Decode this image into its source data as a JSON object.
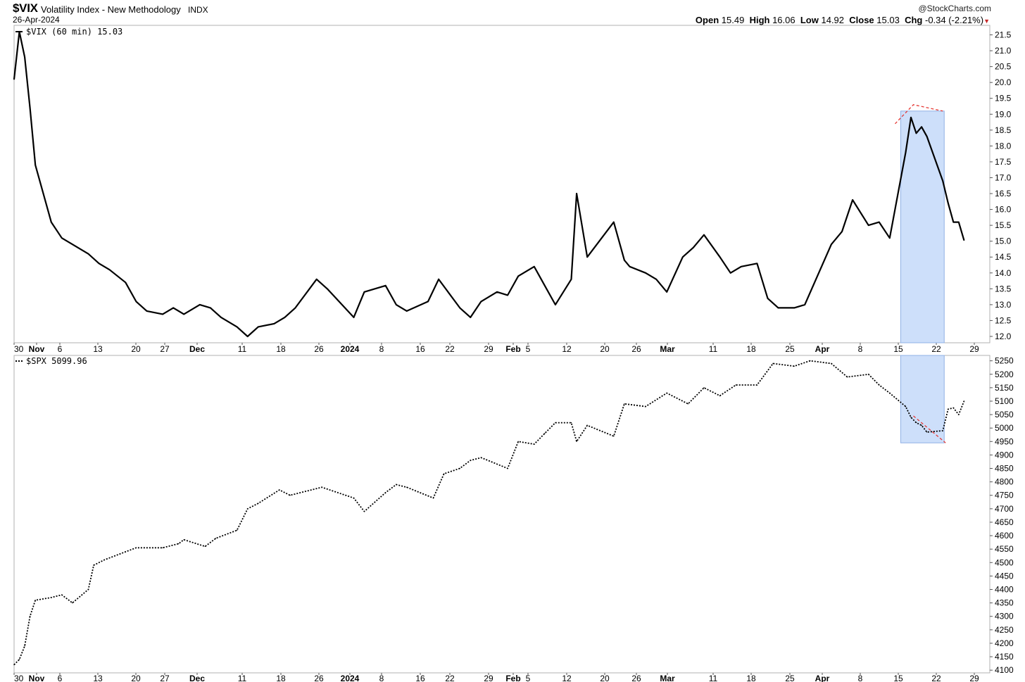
{
  "header": {
    "symbol": "$VIX",
    "description": "Volatility Index - New Methodology",
    "exchange": "INDX",
    "date": "26-Apr-2024",
    "credit": "@StockCharts.com",
    "open_label": "Open",
    "open": "15.49",
    "high_label": "High",
    "high": "16.06",
    "low_label": "Low",
    "low": "14.92",
    "close_label": "Close",
    "close": "15.03",
    "chg_label": "Chg",
    "chg": "-0.34 (-2.21%)"
  },
  "colors": {
    "highlight_fill": "#cddffa",
    "highlight_stroke": "#8fb0e6",
    "trend_line": "#e53935",
    "series_line": "#000000",
    "grid_frame": "#b0b0b0"
  },
  "chart_data": [
    {
      "type": "line",
      "legend": "$VIX (60 min) 15.03",
      "series": [
        {
          "name": "$VIX (60 min)",
          "style": "solid",
          "x": [
            "2023-10-30",
            "2023-10-31",
            "2023-11-01",
            "2023-11-02",
            "2023-11-03",
            "2023-11-06",
            "2023-11-08",
            "2023-11-10",
            "2023-11-13",
            "2023-11-15",
            "2023-11-17",
            "2023-11-20",
            "2023-11-22",
            "2023-11-24",
            "2023-11-27",
            "2023-11-29",
            "2023-12-01",
            "2023-12-04",
            "2023-12-06",
            "2023-12-08",
            "2023-12-11",
            "2023-12-13",
            "2023-12-15",
            "2023-12-18",
            "2023-12-20",
            "2023-12-22",
            "2023-12-26",
            "2023-12-28",
            "2024-01-02",
            "2024-01-04",
            "2024-01-08",
            "2024-01-10",
            "2024-01-12",
            "2024-01-16",
            "2024-01-18",
            "2024-01-22",
            "2024-01-24",
            "2024-01-26",
            "2024-01-29",
            "2024-01-31",
            "2024-02-02",
            "2024-02-05",
            "2024-02-07",
            "2024-02-09",
            "2024-02-12",
            "2024-02-13",
            "2024-02-15",
            "2024-02-20",
            "2024-02-22",
            "2024-02-23",
            "2024-02-26",
            "2024-02-28",
            "2024-03-01",
            "2024-03-04",
            "2024-03-06",
            "2024-03-08",
            "2024-03-11",
            "2024-03-13",
            "2024-03-15",
            "2024-03-18",
            "2024-03-20",
            "2024-03-22",
            "2024-03-25",
            "2024-03-27",
            "2024-04-01",
            "2024-04-03",
            "2024-04-05",
            "2024-04-08",
            "2024-04-10",
            "2024-04-12",
            "2024-04-15",
            "2024-04-16",
            "2024-04-17",
            "2024-04-18",
            "2024-04-19",
            "2024-04-22",
            "2024-04-23",
            "2024-04-24",
            "2024-04-25",
            "2024-04-26"
          ],
          "values": [
            20.1,
            21.6,
            20.8,
            19.2,
            17.4,
            15.6,
            15.1,
            14.9,
            14.6,
            14.3,
            14.1,
            13.7,
            13.1,
            12.8,
            12.7,
            12.9,
            12.7,
            13.0,
            12.9,
            12.6,
            12.3,
            12.0,
            12.3,
            12.4,
            12.6,
            12.9,
            13.8,
            13.5,
            12.6,
            13.4,
            13.6,
            13.0,
            12.8,
            13.1,
            13.8,
            12.9,
            12.6,
            13.1,
            13.4,
            13.3,
            13.9,
            14.2,
            13.6,
            13.0,
            13.8,
            16.5,
            14.5,
            15.6,
            14.4,
            14.2,
            14.0,
            13.8,
            13.4,
            14.5,
            14.8,
            15.2,
            14.5,
            14.0,
            14.2,
            14.3,
            13.2,
            12.9,
            12.9,
            13.0,
            14.9,
            15.3,
            16.3,
            15.5,
            15.6,
            15.1,
            17.8,
            18.9,
            18.4,
            18.6,
            18.3,
            16.9,
            16.2,
            15.6,
            15.6,
            15.03
          ]
        }
      ],
      "ylim": [
        11.8,
        21.8
      ],
      "yticks": [
        "21.5",
        "21.0",
        "20.5",
        "20.0",
        "19.5",
        "19.0",
        "18.5",
        "18.0",
        "17.5",
        "17.0",
        "16.5",
        "16.0",
        "15.5",
        "15.0",
        "14.5",
        "14.0",
        "13.5",
        "13.0",
        "12.5",
        "12.0"
      ],
      "xticks": [
        "30",
        "Nov",
        "6",
        "13",
        "20",
        "27",
        "Dec",
        "11",
        "18",
        "26",
        "2024",
        "8",
        "16",
        "22",
        "29",
        "Feb",
        "5",
        "12",
        "20",
        "26",
        "Mar",
        "11",
        "18",
        "25",
        "Apr",
        "8",
        "15",
        "22",
        "29"
      ],
      "grid": false,
      "legend_position": "top-left"
    },
    {
      "type": "line",
      "legend": "$SPX 5099.96",
      "series": [
        {
          "name": "$SPX",
          "style": "dotted",
          "x": [
            "2023-10-30",
            "2023-10-31",
            "2023-11-01",
            "2023-11-02",
            "2023-11-03",
            "2023-11-06",
            "2023-11-08",
            "2023-11-10",
            "2023-11-13",
            "2023-11-14",
            "2023-11-16",
            "2023-11-20",
            "2023-11-22",
            "2023-11-27",
            "2023-11-30",
            "2023-12-01",
            "2023-12-05",
            "2023-12-07",
            "2023-12-11",
            "2023-12-13",
            "2023-12-15",
            "2023-12-19",
            "2023-12-21",
            "2023-12-27",
            "2024-01-02",
            "2024-01-04",
            "2024-01-08",
            "2024-01-10",
            "2024-01-12",
            "2024-01-17",
            "2024-01-19",
            "2024-01-22",
            "2024-01-24",
            "2024-01-26",
            "2024-01-31",
            "2024-02-02",
            "2024-02-05",
            "2024-02-07",
            "2024-02-09",
            "2024-02-12",
            "2024-02-13",
            "2024-02-15",
            "2024-02-20",
            "2024-02-22",
            "2024-02-26",
            "2024-03-01",
            "2024-03-05",
            "2024-03-08",
            "2024-03-11",
            "2024-03-14",
            "2024-03-18",
            "2024-03-21",
            "2024-03-25",
            "2024-03-28",
            "2024-04-01",
            "2024-04-04",
            "2024-04-08",
            "2024-04-10",
            "2024-04-12",
            "2024-04-15",
            "2024-04-16",
            "2024-04-17",
            "2024-04-18",
            "2024-04-19",
            "2024-04-22",
            "2024-04-23",
            "2024-04-24",
            "2024-04-25",
            "2024-04-26"
          ],
          "values": [
            4120,
            4140,
            4190,
            4300,
            4360,
            4370,
            4380,
            4350,
            4400,
            4490,
            4510,
            4540,
            4555,
            4555,
            4570,
            4585,
            4560,
            4590,
            4620,
            4700,
            4720,
            4770,
            4750,
            4780,
            4740,
            4690,
            4760,
            4790,
            4780,
            4740,
            4830,
            4850,
            4880,
            4890,
            4850,
            4950,
            4940,
            4980,
            5020,
            5020,
            4950,
            5010,
            4970,
            5090,
            5080,
            5130,
            5090,
            5150,
            5120,
            5160,
            5160,
            5240,
            5230,
            5250,
            5240,
            5190,
            5200,
            5160,
            5130,
            5080,
            5040,
            5020,
            5010,
            4985,
            4990,
            5070,
            5075,
            5050,
            5099.96
          ]
        }
      ],
      "ylim": [
        4090,
        5270
      ],
      "yticks": [
        "5250",
        "5200",
        "5150",
        "5100",
        "5050",
        "5000",
        "4950",
        "4900",
        "4850",
        "4800",
        "4750",
        "4700",
        "4650",
        "4600",
        "4550",
        "4500",
        "4450",
        "4400",
        "4350",
        "4300",
        "4250",
        "4200",
        "4150",
        "4100"
      ],
      "xticks": [
        "30",
        "Nov",
        "6",
        "13",
        "20",
        "27",
        "Dec",
        "11",
        "18",
        "26",
        "2024",
        "8",
        "16",
        "22",
        "29",
        "Feb",
        "5",
        "12",
        "20",
        "26",
        "Mar",
        "11",
        "18",
        "25",
        "Apr",
        "8",
        "15",
        "22",
        "29"
      ],
      "grid": false,
      "legend_position": "top-left"
    }
  ],
  "annotations": {
    "highlight_period": [
      "2024-04-15",
      "2024-04-22"
    ],
    "vix_trend_points": [
      [
        18.7,
        19.3
      ],
      [
        19.3,
        19.1
      ]
    ],
    "spx_trend_points": [
      [
        5040,
        4950
      ]
    ]
  }
}
